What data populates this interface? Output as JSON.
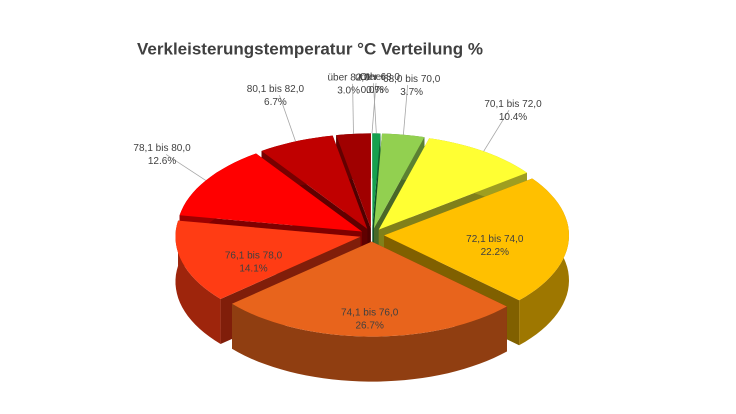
{
  "chart_data": {
    "type": "pie3d",
    "title": "Verkleisterungstemperatur °C Verteilung  %",
    "categories": [
      "unter 68,0",
      "68,0 bis 70,0",
      "70,1 bis 72,0",
      "72,1 bis 74,0",
      "74,1 bis 76,0",
      "76,1 bis 78,0",
      "78,1 bis 80,0",
      "80,1 bis 82,0",
      "über 82,0",
      "Other"
    ],
    "values": [
      0.7,
      3.7,
      10.4,
      22.2,
      26.7,
      14.1,
      12.6,
      6.7,
      3.0,
      0.0
    ],
    "value_labels": [
      "0.7%",
      "3.7%",
      "10.4%",
      "22.2%",
      "26.7%",
      "14.1%",
      "12.6%",
      "6.7%",
      "3.0%",
      "0.0%"
    ],
    "colors": [
      "#16a04e",
      "#92d050",
      "#ffff33",
      "#ffc000",
      "#e8641c",
      "#ff3c14",
      "#ff0000",
      "#c00000",
      "#a00000",
      "#700000"
    ]
  }
}
